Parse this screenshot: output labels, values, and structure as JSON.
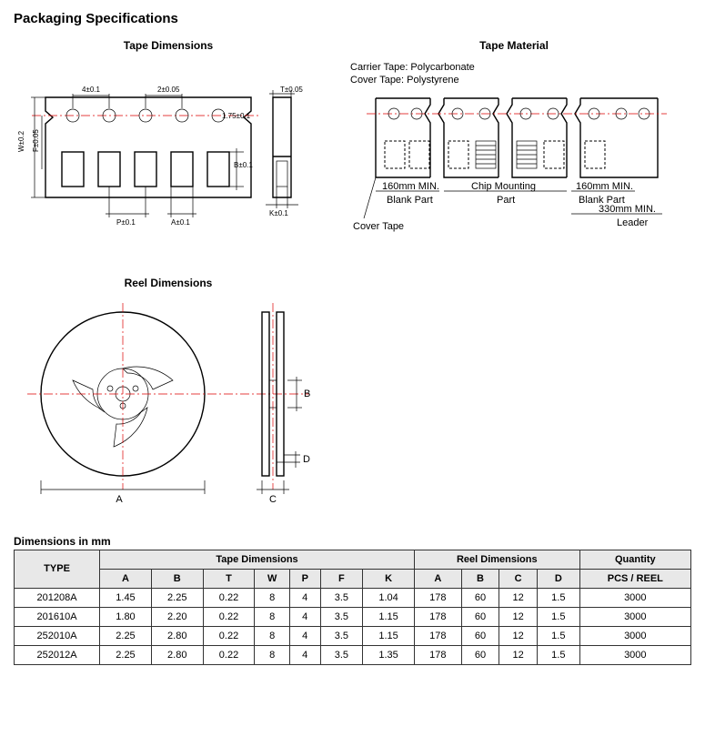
{
  "title": "Packaging Specifications",
  "headings": {
    "tape_dim": "Tape Dimensions",
    "tape_mat": "Tape Material",
    "reel_dim": "Reel Dimensions"
  },
  "material": {
    "carrier": "Carrier Tape: Polycarbonate",
    "cover": "Cover Tape: Polystyrene"
  },
  "tape_labels": {
    "top1": "4±0.1",
    "top2": "2±0.05",
    "side_T": "T±0.05",
    "sprocket_d": "1.75±0.1",
    "B": "B±0.1",
    "P": "P±0.1",
    "A": "A±0.1",
    "K": "K±0.1",
    "W": "W±0.2",
    "F": "F±0.05"
  },
  "mat_labels": {
    "blank1": "160mm MIN.",
    "blank1_sub": "Blank Part",
    "chip": "Chip Mounting",
    "chip_sub": "Part",
    "blank2": "160mm MIN.",
    "blank2_sub": "Blank Part",
    "leader": "330mm MIN.",
    "leader_sub": "Leader",
    "cover_tape": "Cover Tape"
  },
  "reel_labels": {
    "A": "A",
    "B": "B",
    "C": "C",
    "D": "D"
  },
  "table": {
    "caption": "Dimensions in mm",
    "headers": {
      "type": "TYPE",
      "tape": "Tape Dimensions",
      "reel": "Reel Dimensions",
      "qty": "Quantity",
      "qty_sub": "PCS / REEL",
      "tape_cols": [
        "A",
        "B",
        "T",
        "W",
        "P",
        "F",
        "K"
      ],
      "reel_cols": [
        "A",
        "B",
        "C",
        "D"
      ]
    },
    "rows": [
      {
        "type": "201208A",
        "tape": [
          "1.45",
          "2.25",
          "0.22",
          "8",
          "4",
          "3.5",
          "1.04"
        ],
        "reel": [
          "178",
          "60",
          "12",
          "1.5"
        ],
        "qty": "3000"
      },
      {
        "type": "201610A",
        "tape": [
          "1.80",
          "2.20",
          "0.22",
          "8",
          "4",
          "3.5",
          "1.15"
        ],
        "reel": [
          "178",
          "60",
          "12",
          "1.5"
        ],
        "qty": "3000"
      },
      {
        "type": "252010A",
        "tape": [
          "2.25",
          "2.80",
          "0.22",
          "8",
          "4",
          "3.5",
          "1.15"
        ],
        "reel": [
          "178",
          "60",
          "12",
          "1.5"
        ],
        "qty": "3000"
      },
      {
        "type": "252012A",
        "tape": [
          "2.25",
          "2.80",
          "0.22",
          "8",
          "4",
          "3.5",
          "1.35"
        ],
        "reel": [
          "178",
          "60",
          "12",
          "1.5"
        ],
        "qty": "3000"
      }
    ]
  },
  "styling": {
    "page_bg": "#ffffff",
    "text_color": "#000000",
    "table_header_bg": "#e8e8e8",
    "table_border": "#333333",
    "centerline_color": "#d00000",
    "line_color": "#000000",
    "title_fontsize": 15,
    "heading_fontsize": 12,
    "body_fontsize": 12,
    "table_fontsize": 11,
    "dim_fontsize": 8
  }
}
